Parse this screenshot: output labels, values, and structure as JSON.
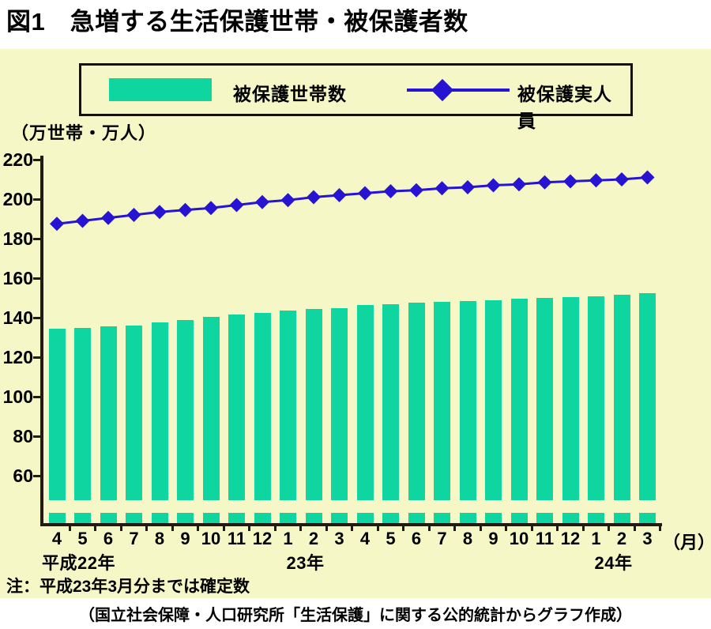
{
  "page": {
    "title": "図1　急増する生活保護世帯・被保護者数",
    "note": "注：平成23年3月分までは確定数",
    "source": "（国立社会保障・人口研究所「生活保護」に関する公的統計からグラフ作成）"
  },
  "legend": {
    "bar_label": "被保護世帯数",
    "line_label": "被保護実人員"
  },
  "axis": {
    "unit_label": "（万世帯・万人）",
    "month_unit": "（月）"
  },
  "colors": {
    "panel_bg": "#f5f8c6",
    "bar_green": "#0fd6a1",
    "line_blue": "#2713d2",
    "axis_black": "#221a14"
  },
  "chart_data": {
    "type": "bar",
    "title": "図1　急増する生活保護世帯・被保護者数",
    "ylabel": "万世帯・万人",
    "ylim": [
      60,
      220
    ],
    "yticks": [
      220,
      200,
      180,
      160,
      140,
      120,
      100,
      80,
      60
    ],
    "grid": false,
    "legend_position": "top",
    "axis_break": true,
    "categories": [
      "4",
      "5",
      "6",
      "7",
      "8",
      "9",
      "10",
      "11",
      "12",
      "1",
      "2",
      "3",
      "4",
      "5",
      "6",
      "7",
      "8",
      "9",
      "10",
      "11",
      "12",
      "1",
      "2",
      "3"
    ],
    "era_groups": [
      {
        "label": "平成22年",
        "start_index": 0
      },
      {
        "label": "23年",
        "start_index": 9
      },
      {
        "label": "24年",
        "start_index": 21
      }
    ],
    "series": [
      {
        "name": "被保護世帯数",
        "type": "bar",
        "values": [
          134.5,
          135.0,
          135.5,
          136.0,
          137.5,
          139.0,
          140.5,
          141.5,
          142.5,
          143.5,
          144.5,
          145.0,
          146.5,
          147.0,
          147.5,
          148.0,
          148.5,
          149.0,
          149.5,
          150.0,
          150.5,
          151.0,
          151.5,
          152.5
        ]
      },
      {
        "name": "被保護実人員",
        "type": "line",
        "values": [
          187.5,
          189.0,
          190.5,
          192.0,
          193.5,
          194.5,
          195.5,
          197.0,
          198.5,
          199.5,
          201.0,
          202.0,
          203.0,
          204.0,
          204.5,
          205.5,
          206.0,
          207.0,
          207.5,
          208.5,
          209.0,
          209.5,
          210.0,
          211.0
        ]
      }
    ]
  }
}
